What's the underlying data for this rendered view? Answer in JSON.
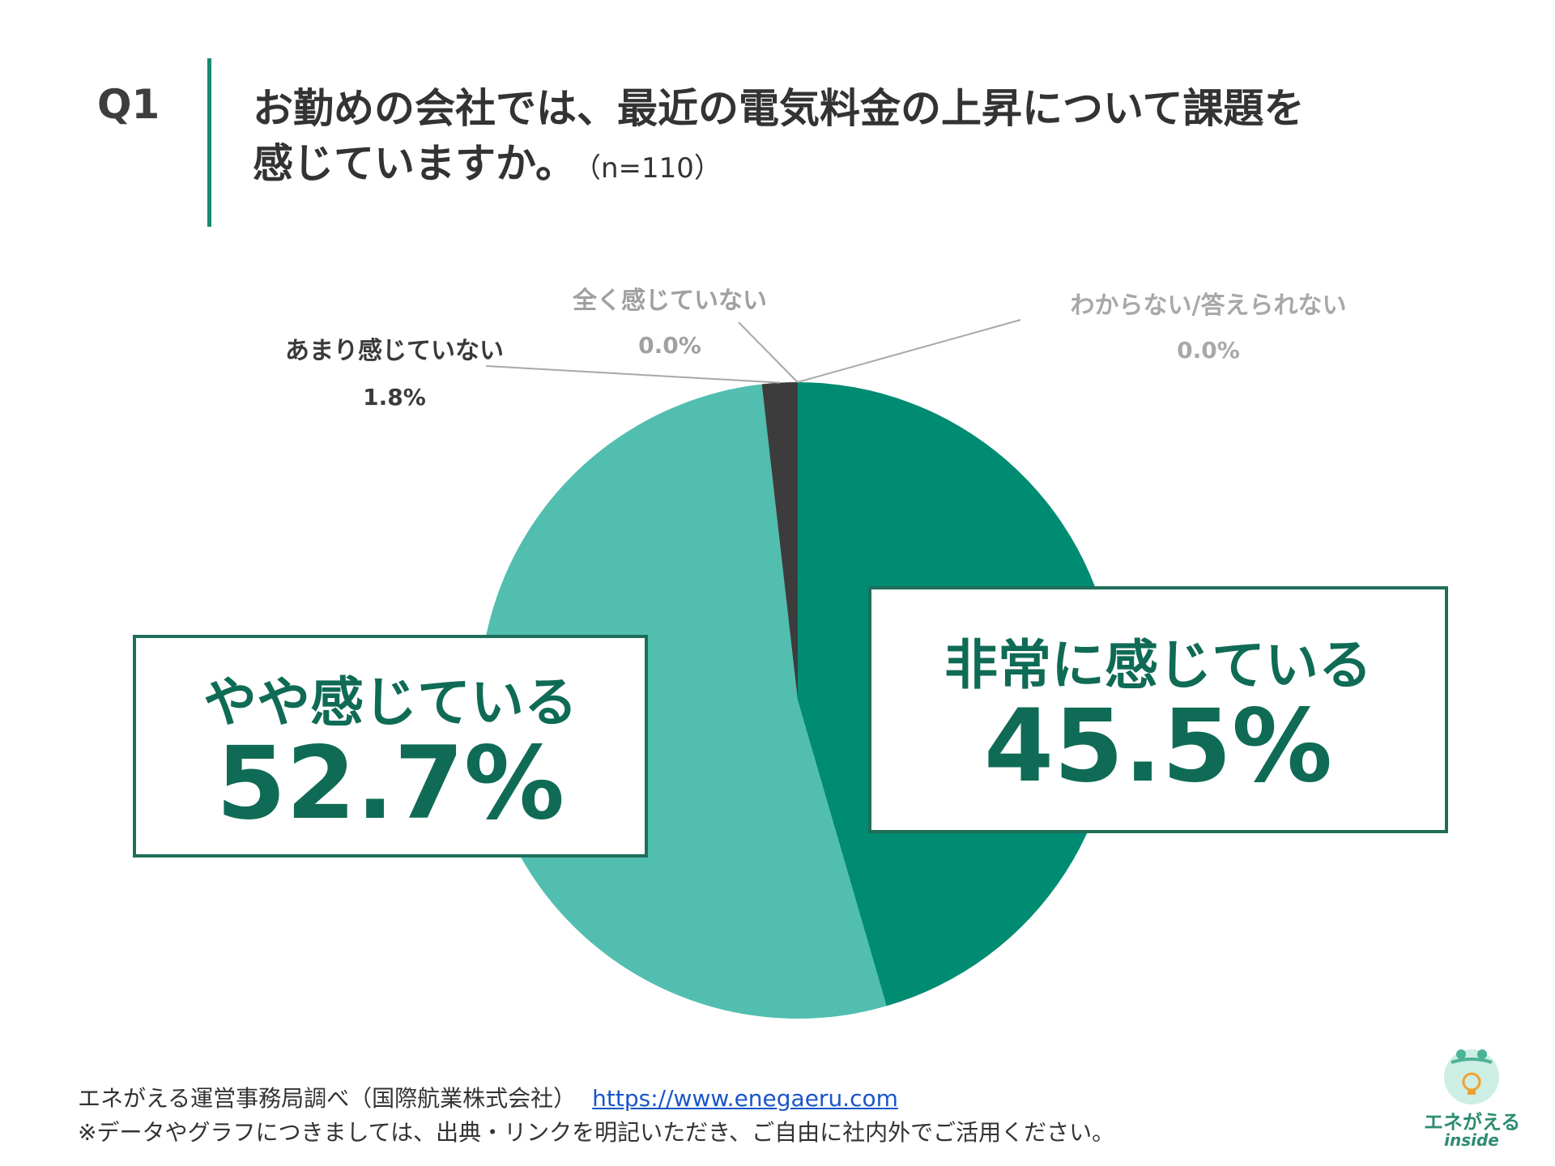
{
  "header": {
    "q_label": "Q1",
    "title_line1": "お勤めの会社では、最近の電気料金の上昇について課題を",
    "title_line2": "感じていますか。",
    "n_label": "（n=110）"
  },
  "chart_data": {
    "type": "pie",
    "title": "お勤めの会社では、最近の電気料金の上昇について課題を感じていますか。",
    "n": 110,
    "slices": [
      {
        "label": "非常に感じている",
        "value": 45.5,
        "value_label": "45.5%",
        "color": "#008b73"
      },
      {
        "label": "やや感じている",
        "value": 52.7,
        "value_label": "52.7%",
        "color": "#51beb0"
      },
      {
        "label": "あまり感じていない",
        "value": 1.8,
        "value_label": "1.8%",
        "color": "#3c3c3c"
      },
      {
        "label": "全く感じていない",
        "value": 0.0,
        "value_label": "0.0%",
        "color": "#9a9a9a"
      },
      {
        "label": "わからない/答えられない",
        "value": 0.0,
        "value_label": "0.0%",
        "color": "#b5b5b5"
      }
    ]
  },
  "footer": {
    "source": "エネがえる運営事務局調べ（国際航業株式会社）",
    "url": "https://www.enegaeru.com",
    "note": "※データやグラフにつきましては、出典・リンクを明記いただき、ご自由に社内外でご活用ください。"
  },
  "logo": {
    "name": "エネがえる",
    "sub": "inside"
  }
}
